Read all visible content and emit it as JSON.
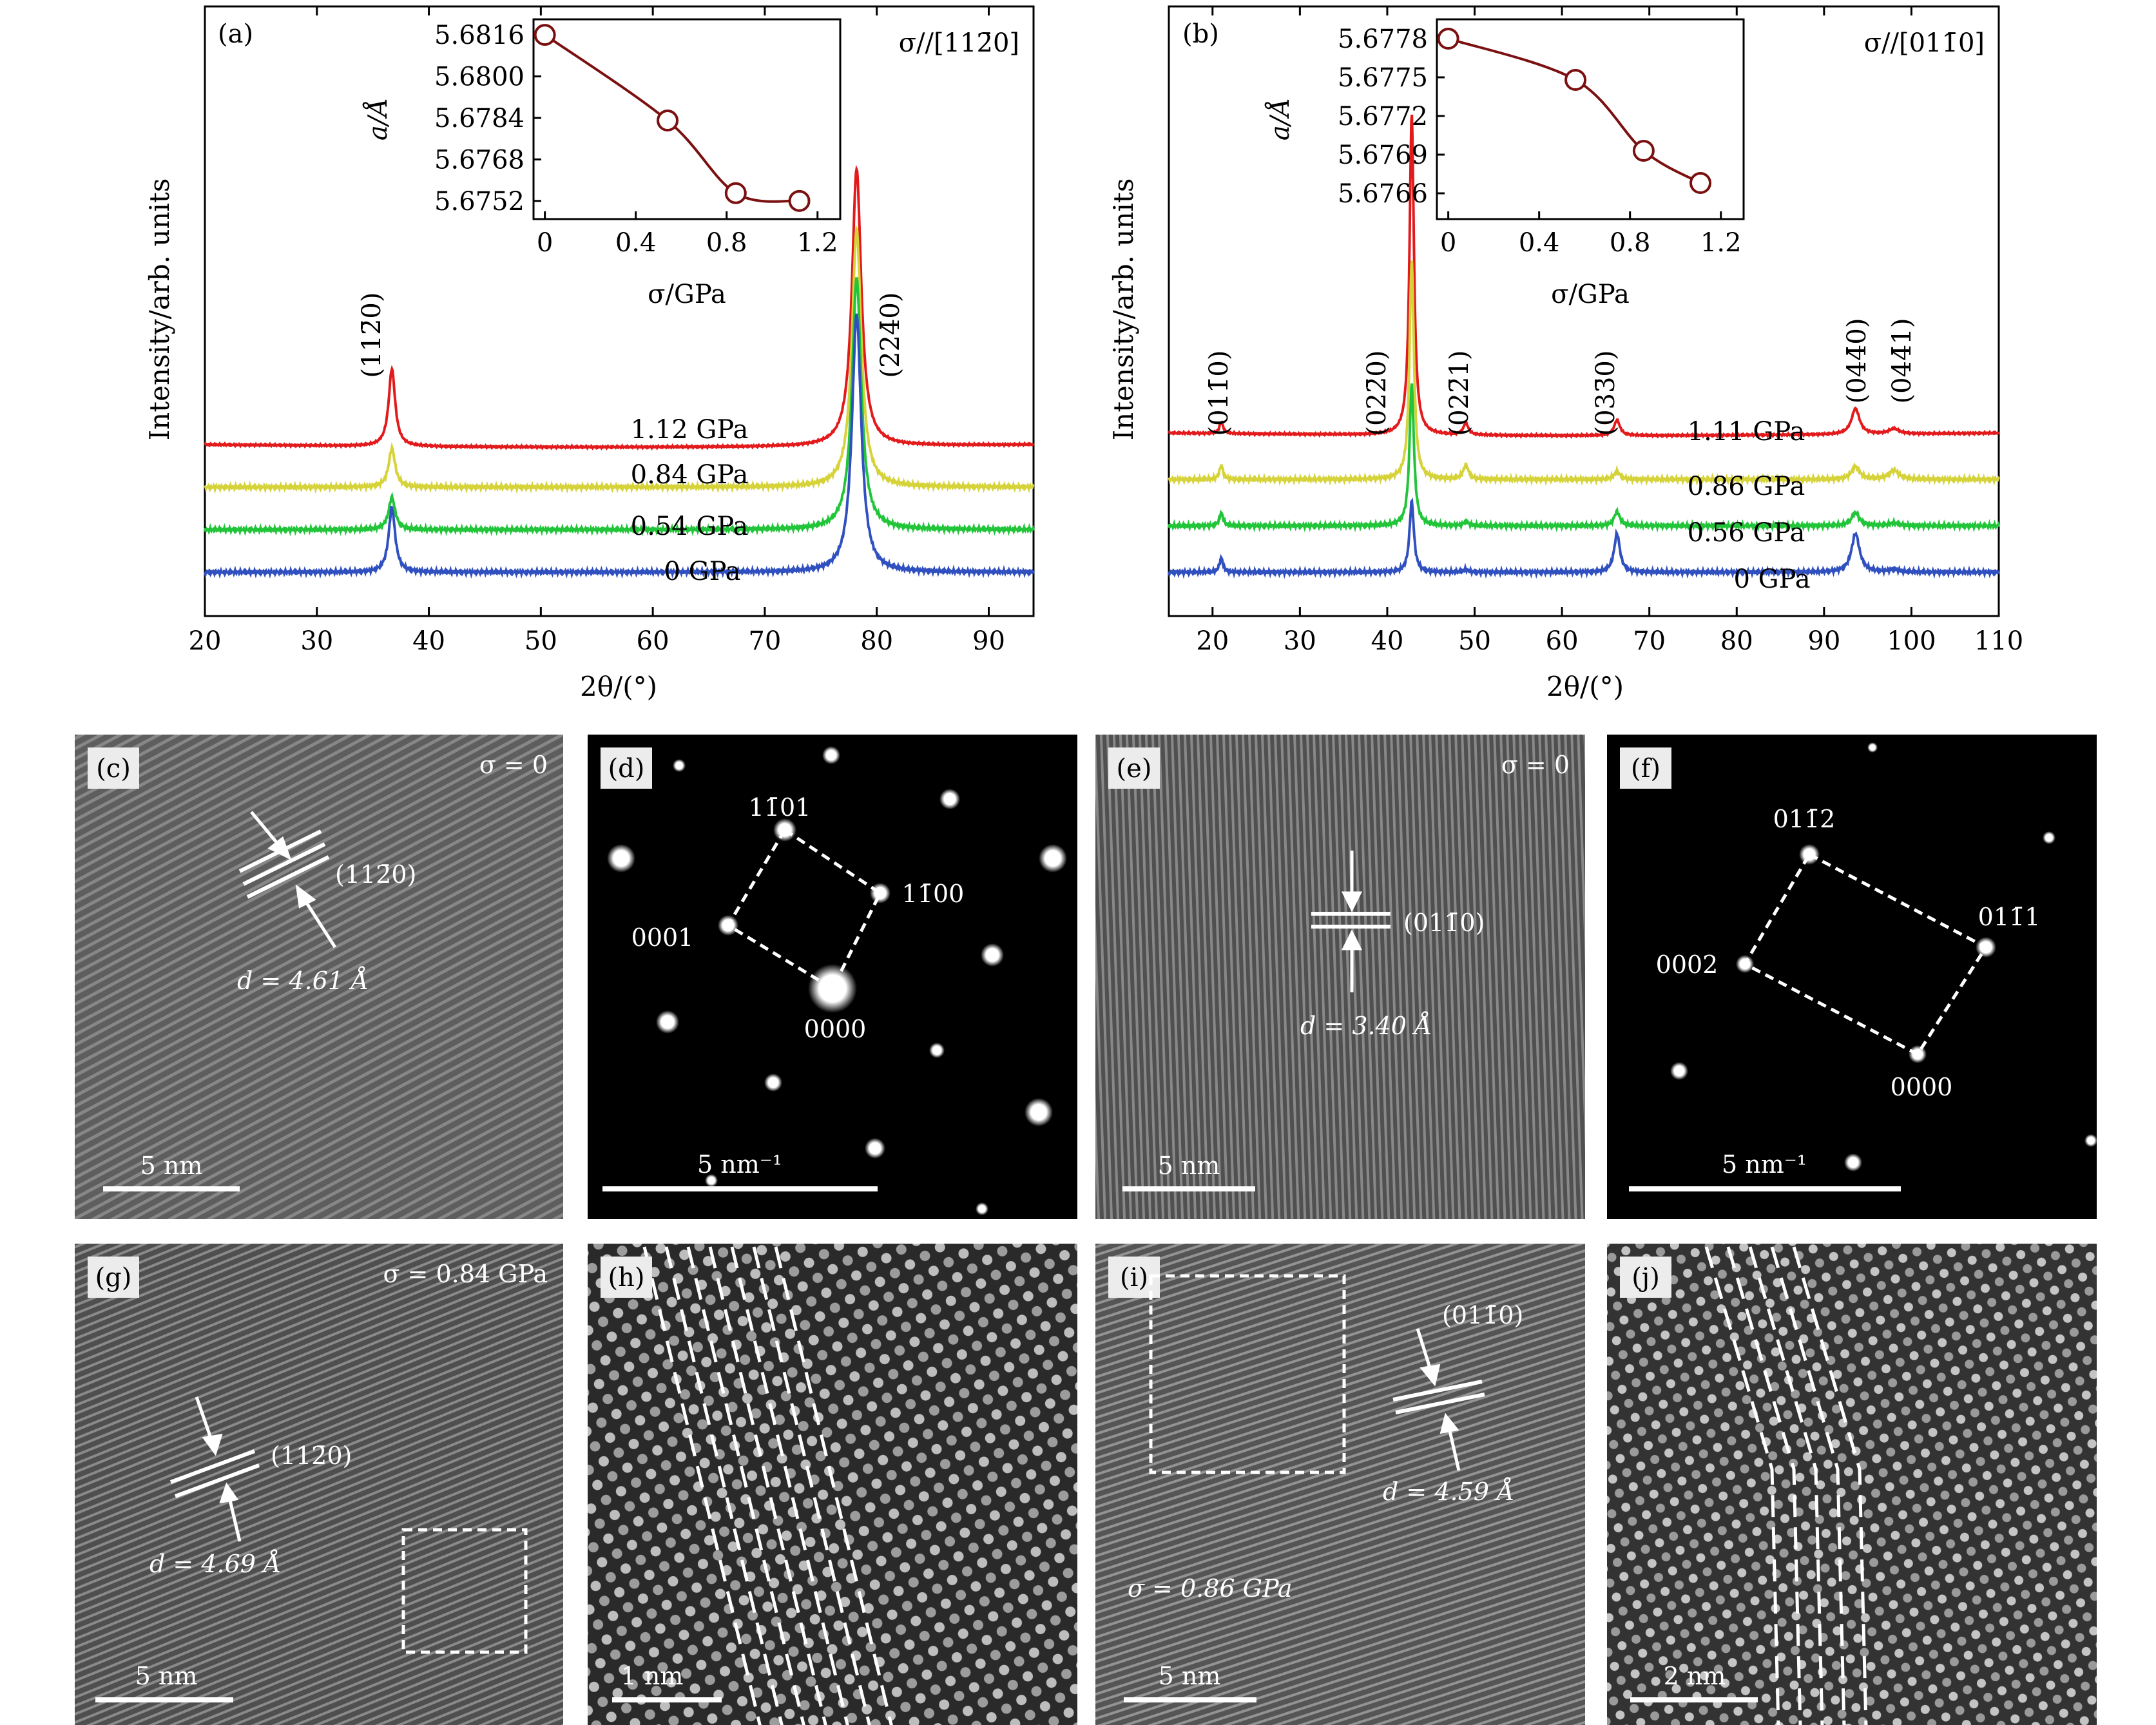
{
  "colors": {
    "red": "#e31a1c",
    "yellow": "#d6d33a",
    "green": "#22c53a",
    "blue": "#3050c0",
    "inset_line": "#7a1010"
  },
  "panels": {
    "a": {
      "label": "(a)",
      "stress_dir": "σ//[112̄0]",
      "peaks": [
        "(112̄0)",
        "(224̄0)"
      ],
      "trace_labels": [
        "1.12 GPa",
        "0.84 GPa",
        "0.54 GPa",
        "0 GPa"
      ],
      "inset_ylabel": "a/Å",
      "inset_xlabel": "σ/GPa"
    },
    "b": {
      "label": "(b)",
      "stress_dir": "σ//[011̄0]",
      "peaks": [
        "(011̄0)",
        "(022̄0)",
        "(022̄1)",
        "(033̄0)",
        "(044̄0)",
        "(044̄1)"
      ],
      "trace_labels": [
        "1.11 GPa",
        "0.86 GPa",
        "0.56 GPa",
        "0 GPa"
      ],
      "inset_ylabel": "a/Å",
      "inset_xlabel": "σ/GPa"
    },
    "c": {
      "label": "(c)",
      "sigma": "σ = 0",
      "plane": "(112̄0)",
      "d": "d = 4.61 Å",
      "scale": "5 nm"
    },
    "d": {
      "label": "(d)",
      "spots": [
        "11̄01",
        "11̄00",
        "0001",
        "0000"
      ],
      "scale": "5 nm⁻¹"
    },
    "e": {
      "label": "(e)",
      "sigma": "σ = 0",
      "plane": "(011̄0)",
      "d": "d = 3.40 Å",
      "scale": "5 nm"
    },
    "f": {
      "label": "(f)",
      "spots": [
        "011̄2",
        "011̄1",
        "0002",
        "0000"
      ],
      "scale": "5 nm⁻¹"
    },
    "g": {
      "label": "(g)",
      "sigma": "σ = 0.84 GPa",
      "plane": "(112̄0)",
      "d": "d = 4.69 Å",
      "scale": "5 nm"
    },
    "h": {
      "label": "(h)",
      "scale": "1 nm"
    },
    "i": {
      "label": "(i)",
      "sigma": "σ = 0.86 GPa",
      "plane": "(011̄0)",
      "d": "d = 4.59 Å",
      "scale": "5 nm"
    },
    "j": {
      "label": "(j)",
      "scale": "2 nm"
    }
  },
  "chart_data": [
    {
      "type": "line",
      "panel": "a",
      "xlabel": "2θ/(°)",
      "ylabel": "Intensity/arb. units",
      "xlim": [
        20,
        94
      ],
      "xticks": [
        20,
        30,
        40,
        50,
        60,
        70,
        80,
        90
      ],
      "peak_positions": [
        36.7,
        78.2
      ],
      "series": [
        {
          "name": "1.12 GPa",
          "color": "red",
          "offset": 3
        },
        {
          "name": "0.84 GPa",
          "color": "yellow",
          "offset": 2
        },
        {
          "name": "0.54 GPa",
          "color": "green",
          "offset": 1
        },
        {
          "name": "0 GPa",
          "color": "blue",
          "offset": 0
        }
      ]
    },
    {
      "type": "line",
      "panel": "a-inset",
      "xlabel": "σ/GPa",
      "ylabel": "a/Å",
      "xlim": [
        -0.05,
        1.3
      ],
      "ylim": [
        5.6745,
        5.6822
      ],
      "xticks": [
        "0",
        "0.4",
        "0.8",
        "1.2"
      ],
      "yticks": [
        "5.6816",
        "5.6800",
        "5.6784",
        "5.6768",
        "5.6752"
      ],
      "x": [
        0,
        0.54,
        0.84,
        1.12
      ],
      "y": [
        5.6816,
        5.6783,
        5.6755,
        5.6752
      ]
    },
    {
      "type": "line",
      "panel": "b",
      "xlabel": "2θ/(°)",
      "ylabel": "Intensity/arb. units",
      "xlim": [
        15,
        110
      ],
      "xticks": [
        20,
        30,
        40,
        50,
        60,
        70,
        80,
        90,
        100,
        110
      ],
      "peak_positions": [
        21.0,
        42.8,
        49.0,
        66.3,
        93.6,
        98.0
      ],
      "series": [
        {
          "name": "1.11 GPa",
          "color": "red",
          "offset": 3
        },
        {
          "name": "0.86 GPa",
          "color": "yellow",
          "offset": 2
        },
        {
          "name": "0.56 GPa",
          "color": "green",
          "offset": 1
        },
        {
          "name": "0 GPa",
          "color": "blue",
          "offset": 0
        }
      ]
    },
    {
      "type": "line",
      "panel": "b-inset",
      "xlabel": "σ/GPa",
      "ylabel": "a/Å",
      "xlim": [
        -0.05,
        1.3
      ],
      "ylim": [
        5.6764,
        5.67795
      ],
      "xticks": [
        "0",
        "0.4",
        "0.8",
        "1.2"
      ],
      "yticks": [
        "5.6778",
        "5.6775",
        "5.6772",
        "5.6769",
        "5.6766"
      ],
      "x": [
        0,
        0.56,
        0.86,
        1.11
      ],
      "y": [
        5.6778,
        5.67748,
        5.67693,
        5.67668
      ]
    }
  ]
}
